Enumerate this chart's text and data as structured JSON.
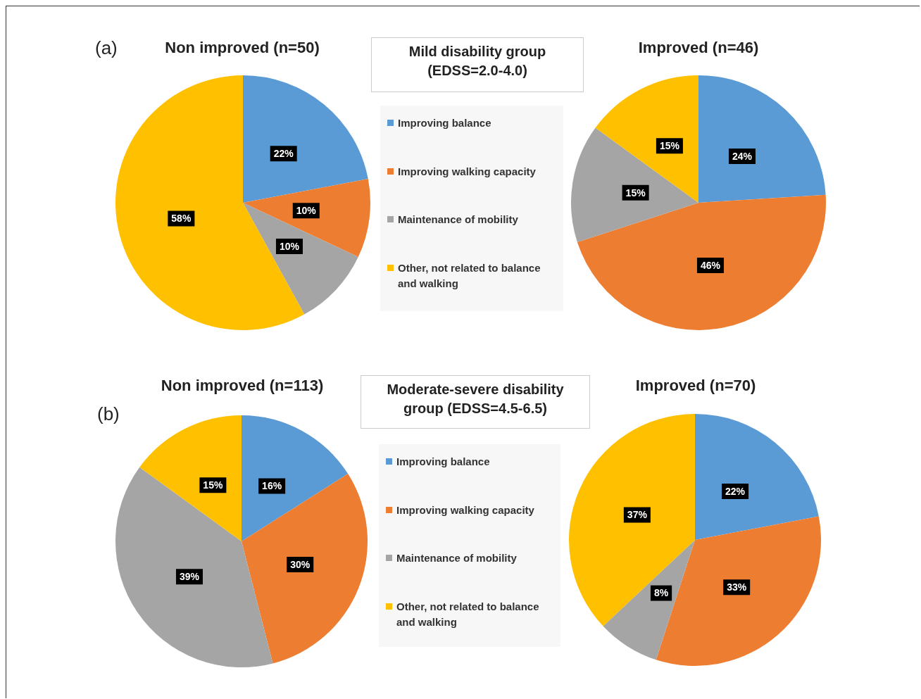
{
  "chart_data": [
    {
      "type": "pie",
      "title": "Non improved (n=50)",
      "subtitle": "Mild disability group (EDSS=2.0-4.0)",
      "annotations": [
        "(a)"
      ],
      "legend": "right",
      "categories": [
        "Improving balance",
        "Improving walking capacity",
        "Maintenance of mobility",
        "Other, not related to balance and walking"
      ],
      "values": [
        22,
        10,
        10,
        58
      ],
      "value_labels": [
        "22%",
        "10%",
        "10%",
        "58%"
      ],
      "colors": [
        "#5b9bd5",
        "#ed7d31",
        "#a5a5a5",
        "#ffc000"
      ]
    },
    {
      "type": "pie",
      "title": "Improved (n=46)",
      "categories": [
        null,
        null,
        null,
        null
      ],
      "values": [
        24,
        46,
        15,
        15
      ],
      "value_labels": [
        "24%",
        "46%",
        "15%",
        "15%"
      ],
      "colors": [
        "#5b9bd5",
        "#ed7d31",
        "#a5a5a5",
        "#ffc000"
      ]
    },
    {
      "type": "pie",
      "title": "Non improved (n=113)",
      "subtitle": "Moderate-severe disability group (EDSS=4.5-6.5)",
      "annotations": [
        "(b)"
      ],
      "legend": "right",
      "categories": [
        "Improving balance",
        "Improving walking capacity",
        "Maintenance of mobility",
        "Other, not related to balance and walking"
      ],
      "values": [
        16,
        30,
        39,
        15
      ],
      "value_labels": [
        "16%",
        "30%",
        "39%",
        "15%"
      ],
      "colors": [
        "#5b9bd5",
        "#ed7d31",
        "#a5a5a5",
        "#ffc000"
      ]
    },
    {
      "type": "pie",
      "title": "Improved (n=70)",
      "categories": [
        null,
        null,
        null,
        null
      ],
      "values": [
        22,
        33,
        8,
        37
      ],
      "value_labels": [
        "22%",
        "33%",
        "8%",
        "37%"
      ],
      "colors": [
        "#5b9bd5",
        "#ed7d31",
        "#a5a5a5",
        "#ffc000"
      ]
    }
  ]
}
